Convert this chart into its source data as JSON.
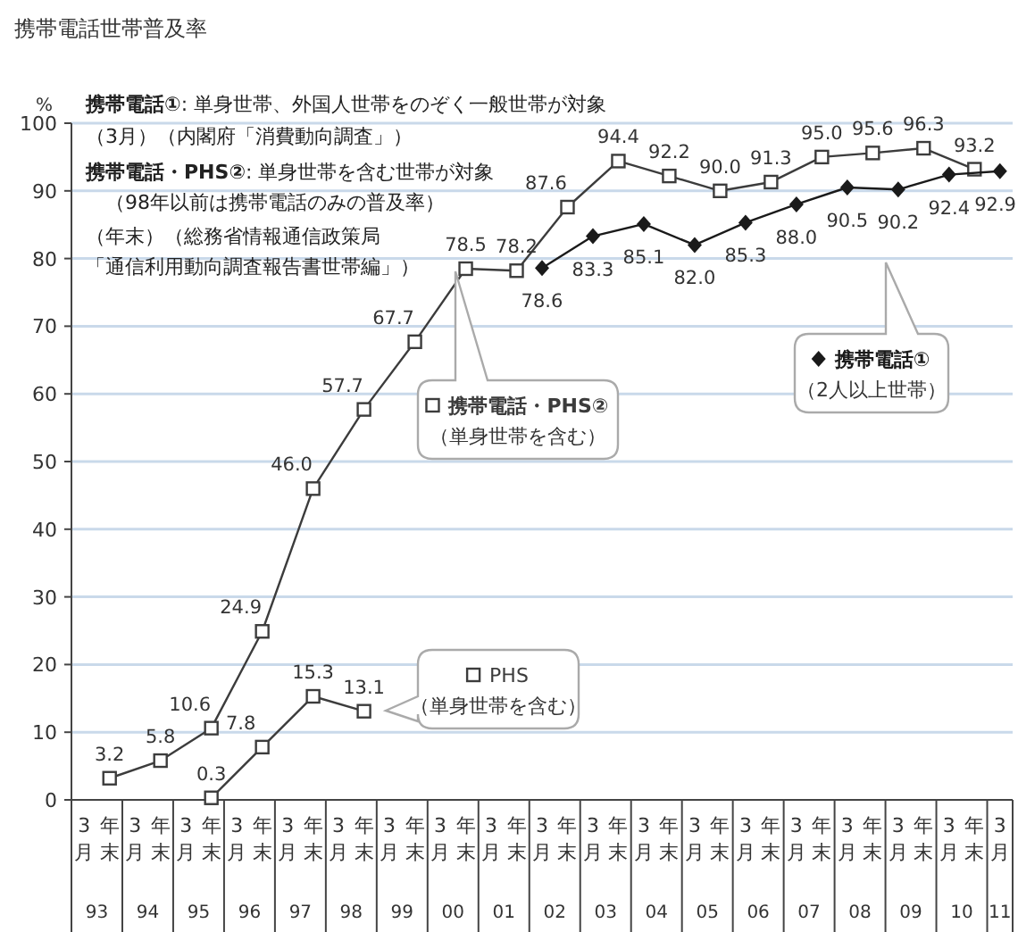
{
  "chart_data": {
    "type": "line",
    "title": "携帯電話世帯普及率",
    "ylabel": "%",
    "categories": [
      "3月",
      "年末",
      "3月",
      "年末",
      "3月",
      "年末",
      "3月",
      "年末",
      "3月",
      "年末",
      "3月",
      "年末",
      "3月",
      "年末",
      "3月",
      "年末",
      "3月",
      "年末",
      "3月",
      "年末",
      "3月",
      "年末",
      "3月",
      "年末",
      "3月",
      "年末",
      "3月",
      "年末",
      "3月",
      "年末",
      "3月",
      "年末",
      "3月",
      "年末",
      "3月",
      "年末",
      "3月"
    ],
    "series": [
      {
        "name": "携帯電話・PHS②",
        "color": "#3c3c3c",
        "marker": "square",
        "values": [
          null,
          3.2,
          null,
          5.8,
          null,
          10.6,
          null,
          24.9,
          null,
          46.0,
          null,
          57.7,
          null,
          67.7,
          null,
          78.5,
          null,
          78.2,
          null,
          87.6,
          null,
          94.4,
          null,
          92.2,
          null,
          90.0,
          null,
          91.3,
          null,
          95.0,
          null,
          95.6,
          null,
          96.3,
          null,
          93.2,
          null
        ],
        "value_labels": [
          null,
          "3.2",
          null,
          "5.8",
          null,
          "10.6",
          null,
          "24.9",
          null,
          "46.0",
          null,
          "57.7",
          null,
          "67.7",
          null,
          "78.5",
          null,
          "78.2",
          null,
          "87.6",
          null,
          "94.4",
          null,
          "92.2",
          null,
          "90.0",
          null,
          "91.3",
          null,
          "95.0",
          null,
          "95.6",
          null,
          "96.3",
          null,
          "93.2",
          null
        ]
      },
      {
        "name": "携帯電話①",
        "color": "#1a1a1a",
        "marker": "diamond",
        "values": [
          null,
          null,
          null,
          null,
          null,
          null,
          null,
          null,
          null,
          null,
          null,
          null,
          null,
          null,
          null,
          null,
          null,
          null,
          78.6,
          null,
          83.3,
          null,
          85.1,
          null,
          82.0,
          null,
          85.3,
          null,
          88.0,
          null,
          90.5,
          null,
          90.2,
          null,
          92.4,
          null,
          92.9
        ],
        "value_labels": [
          null,
          null,
          null,
          null,
          null,
          null,
          null,
          null,
          null,
          null,
          null,
          null,
          null,
          null,
          null,
          null,
          null,
          null,
          "78.6",
          null,
          "83.3",
          null,
          "85.1",
          null,
          "82.0",
          null,
          "85.3",
          null,
          "88.0",
          null,
          "90.5",
          null,
          "90.2",
          null,
          "92.4",
          null,
          "92.9"
        ]
      },
      {
        "name": "PHS",
        "color": "#3c3c3c",
        "marker": "square",
        "values": [
          null,
          null,
          null,
          null,
          null,
          0.3,
          null,
          7.8,
          null,
          15.3,
          null,
          13.1,
          null,
          null,
          null,
          null,
          null,
          null,
          null,
          null,
          null,
          null,
          null,
          null,
          null,
          null,
          null,
          null,
          null,
          null,
          null,
          null,
          null,
          null,
          null,
          null,
          null
        ],
        "value_labels": [
          null,
          null,
          null,
          null,
          null,
          "0.3",
          null,
          "7.8",
          null,
          "15.3",
          null,
          "13.1",
          null,
          null,
          null,
          null,
          null,
          null,
          null,
          null,
          null,
          null,
          null,
          null,
          null,
          null,
          null,
          null,
          null,
          null,
          null,
          null,
          null,
          null,
          null,
          null,
          null
        ]
      }
    ],
    "ylim": [
      0,
      100
    ],
    "yticks": [
      0,
      10,
      20,
      30,
      40,
      50,
      60,
      70,
      80,
      90,
      100
    ],
    "grid": "y",
    "legend": "right",
    "annotations": [
      "**携帯電話①**: 単身世帯、外国人世帯をのぞく一般世帯が対象",
      "（3月）（内閣府「消費動向調査」）",
      "**携帯電話・PHS②**: 単身世帯を含む世帯が対象",
      "　（98年以前は携帯電話のみの普及率）",
      "（年末）（総務省情報通信政策局",
      "「通信利用動向調査報告書世帯編」）",
      "（単身世帯を含む）",
      "（2人以上世帯）",
      "（単身世帯を含む）",
      "93",
      "94",
      "95",
      "96",
      "97",
      "98",
      "99",
      "00",
      "01",
      "02",
      "03",
      "04",
      "05",
      "06",
      "07",
      "08",
      "09",
      "10",
      "11"
    ]
  }
}
